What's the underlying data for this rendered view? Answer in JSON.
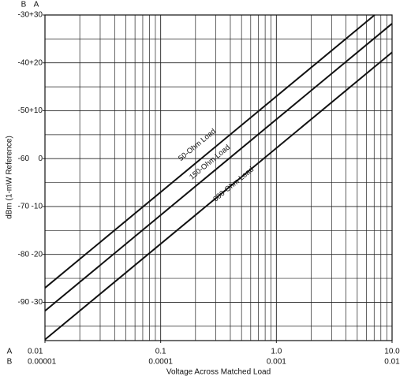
{
  "chart_data": {
    "type": "line",
    "x_label": "Voltage Across Matched Load",
    "y_label": "dBm (1-mW Reference)",
    "y_scale_names": [
      "B",
      "A"
    ],
    "x_scale_names": [
      "A",
      "B"
    ],
    "log_x": true,
    "grid": true,
    "xlim": [
      0.01,
      10
    ],
    "xticks": [
      0.01,
      0.1,
      {
        "value": 1,
        "label": "1.0"
      },
      {
        "value": 10,
        "label": "10.0"
      }
    ],
    "x2lim": [
      1e-05,
      0.01
    ],
    "x2ticks": [
      1e-05,
      0.0001,
      0.001,
      0.01
    ],
    "ylim": [
      -98,
      -30
    ],
    "yticks": [
      -30,
      -40,
      -50,
      -60,
      -70,
      -80,
      -90
    ],
    "y2lim": [
      -38,
      30
    ],
    "y2ticks": [
      {
        "value": 30,
        "label": "+30"
      },
      {
        "value": 20,
        "label": "+20"
      },
      {
        "value": 10,
        "label": "+10"
      },
      0,
      -10,
      -20,
      -30
    ],
    "series": [
      {
        "name": "50-Ohm Load",
        "color": "#111111",
        "axis": "y2",
        "x": [
          0.01,
          7.07
        ],
        "values": [
          -27,
          30
        ]
      },
      {
        "name": "150-Ohm Load",
        "color": "#111111",
        "axis": "y2",
        "x": [
          0.01,
          10
        ],
        "values": [
          -31.8,
          28.2
        ]
      },
      {
        "name": "600-Ohm Load",
        "color": "#111111",
        "axis": "y2",
        "x": [
          0.01,
          10
        ],
        "values": [
          -37.8,
          22.2
        ]
      }
    ]
  }
}
